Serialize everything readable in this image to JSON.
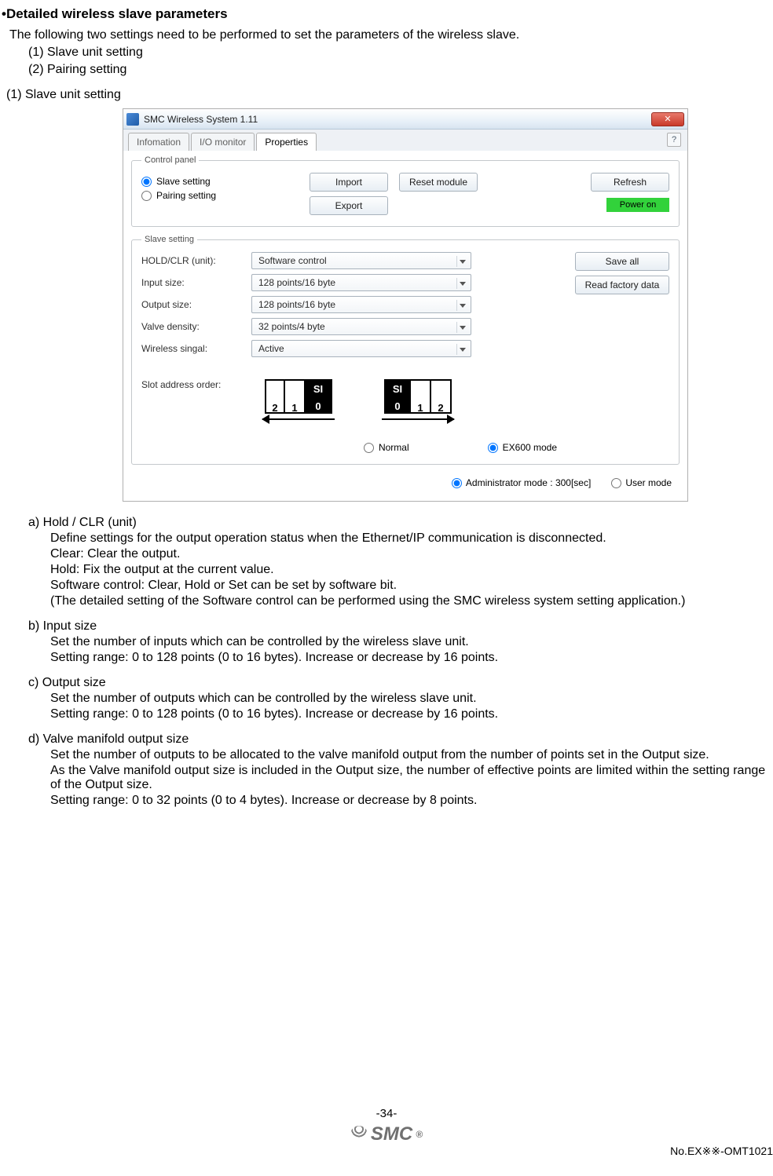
{
  "heading": "•Detailed wireless slave parameters",
  "intro": "The following two settings need to be performed to set the parameters of the wireless slave.",
  "sub1": "(1) Slave unit setting",
  "sub2": "(2) Pairing setting",
  "sectionTitle": "(1) Slave unit setting",
  "app": {
    "title": "SMC Wireless System 1.11",
    "closeGlyph": "✕",
    "tabs": {
      "info": "Infomation",
      "io": "I/O monitor",
      "props": "Properties"
    },
    "help": "?",
    "controlPanel": {
      "legend": "Control panel",
      "radioSlave": "Slave setting",
      "radioPairing": "Pairing setting",
      "btnImport": "Import",
      "btnExport": "Export",
      "btnReset": "Reset module",
      "btnRefresh": "Refresh",
      "power": "Power on"
    },
    "slave": {
      "legend": "Slave setting",
      "labels": {
        "holdclr": "HOLD/CLR (unit):",
        "input": "Input size:",
        "output": "Output size:",
        "density": "Valve density:",
        "signal": "Wireless singal:",
        "slot": "Slot address order:"
      },
      "values": {
        "holdclr": "Software control",
        "input": "128 points/16 byte",
        "output": "128 points/16 byte",
        "density": "32 points/4 byte",
        "signal": "Active"
      },
      "btnSaveAll": "Save all",
      "btnFactory": "Read factory data",
      "diagramA": {
        "c0": "2",
        "c1": "1",
        "si_top": "SI",
        "si_bot": "0"
      },
      "diagramB": {
        "si_top": "SI",
        "si_bot": "0",
        "c1": "1",
        "c2": "2"
      },
      "modeNormal": "Normal",
      "modeEX": "EX600  mode"
    },
    "footer": {
      "admin": "Administrator mode : 300[sec]",
      "user": "User mode"
    }
  },
  "items": {
    "a": {
      "title": "a) Hold / CLR (unit)",
      "l1": "Define settings for the output operation status when the Ethernet/IP communication is disconnected.",
      "l2": "Clear: Clear the output.",
      "l3": "Hold: Fix the output at the current value.",
      "l4": "Software control: Clear, Hold or Set can be set by software bit.",
      "l5": "(The detailed setting of the Software control can be performed using the SMC wireless system setting application.)"
    },
    "b": {
      "title": "b) Input size",
      "l1": "Set the number of inputs which can be controlled by the wireless slave unit.",
      "l2": "Setting range: 0 to 128 points (0 to 16 bytes). Increase or decrease by 16 points."
    },
    "c": {
      "title": "c) Output size",
      "l1": "Set the number of outputs which can be controlled by the wireless slave unit.",
      "l2": "Setting range: 0 to 128 points (0 to 16 bytes). Increase or decrease by 16 points."
    },
    "d": {
      "title": "d) Valve manifold output size",
      "l1": "Set the number of outputs to be allocated to the valve manifold output from the number of points set in the Output size.",
      "l2": "As the Valve manifold output size is included in the Output size, the number of effective points are limited within the setting range of the Output size.",
      "l3": "Setting range: 0 to 32 points (0 to 4 bytes). Increase or decrease by 8 points."
    }
  },
  "pagefoot": {
    "pageNum": "-34-",
    "logo": "SMC",
    "docNo": "No.EX※※-OMT1021"
  }
}
